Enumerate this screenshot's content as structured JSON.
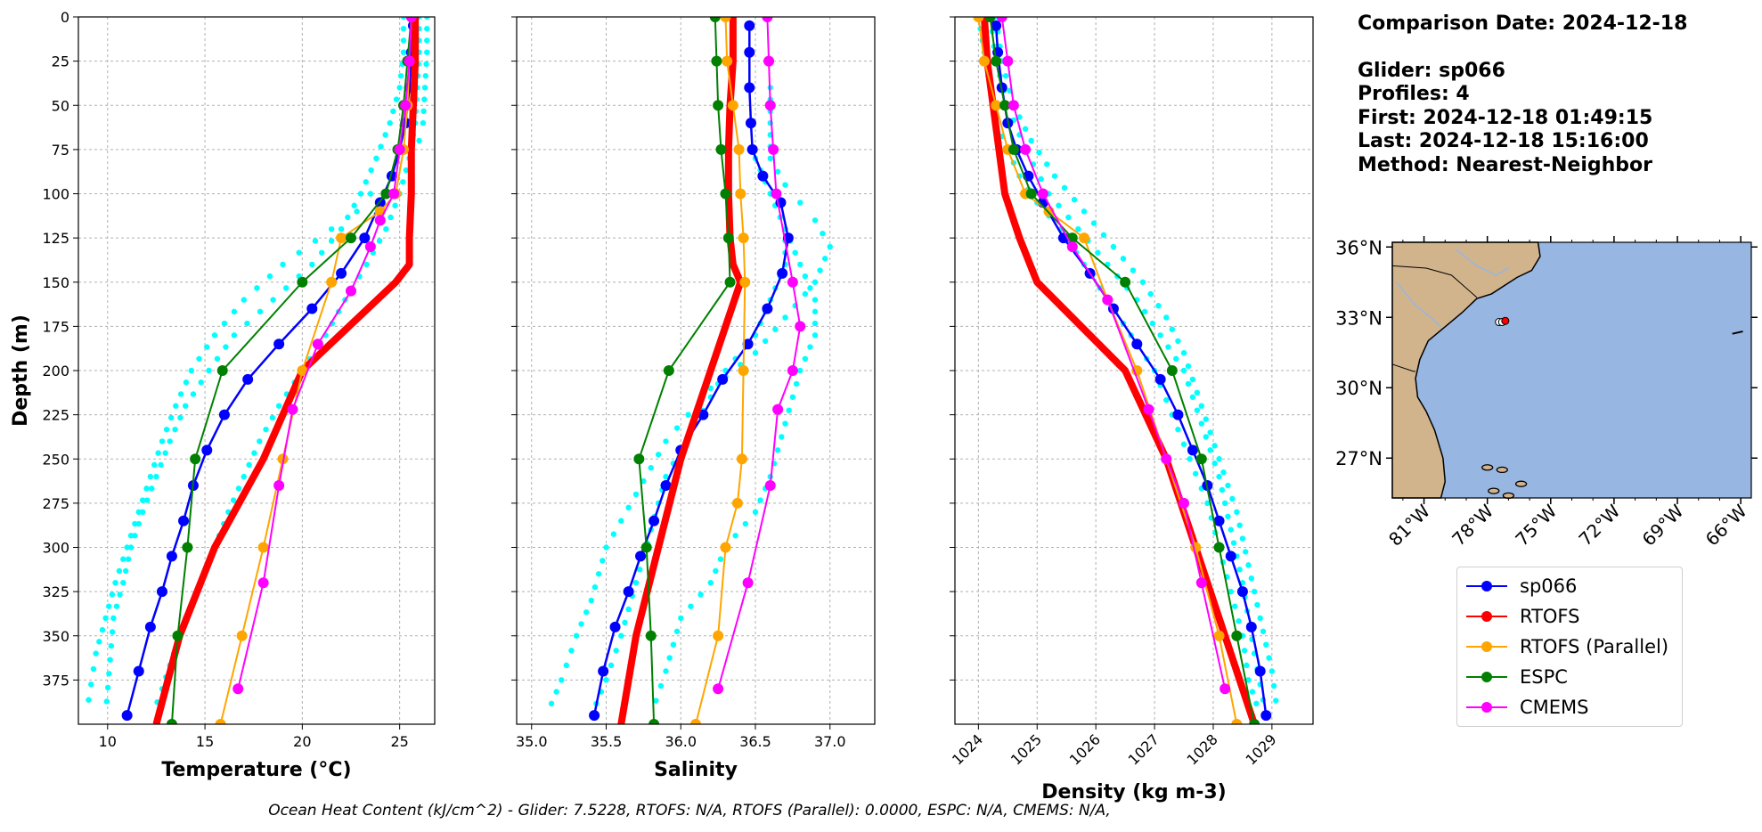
{
  "info": {
    "comparison_date": "Comparison Date: 2024-12-18",
    "glider": "Glider: sp066",
    "profiles": "Profiles: 4",
    "first": "First: 2024-12-18 01:49:15",
    "last": "Last: 2024-12-18 15:16:00",
    "method": "Method: Nearest-Neighbor"
  },
  "footer": "Ocean Heat Content (kJ/cm^2) - Glider: 7.5228,  RTOFS: N/A,  RTOFS (Parallel): 0.0000,  ESPC: N/A,  CMEMS: N/A,",
  "colors": {
    "sp066": "#0000ff",
    "RTOFS": "#ff0000",
    "RTOFS (Parallel)": "#ffa500",
    "ESPC": "#008000",
    "CMEMS": "#ff00ff",
    "glider_envelope": "#00ffff",
    "land": "#d2b48c",
    "ocean": "#97b6e1"
  },
  "legend": [
    "sp066",
    "RTOFS",
    "RTOFS (Parallel)",
    "ESPC",
    "CMEMS"
  ],
  "chart_data": [
    {
      "type": "line",
      "xlabel": "Temperature (°C)",
      "ylabel": "Depth (m)",
      "xlim": [
        8.5,
        26.8
      ],
      "ylim": [
        400,
        0
      ],
      "xticks": [
        10,
        15,
        20,
        25
      ],
      "yticks": [
        0,
        25,
        50,
        75,
        100,
        125,
        150,
        175,
        200,
        225,
        250,
        275,
        300,
        325,
        350,
        375
      ],
      "grid": true,
      "envelope_profiles": [
        {
          "x": [
            26.4,
            26.4,
            26.3,
            26.2,
            26.0,
            25.5,
            24.5,
            23.5,
            22.8,
            21.5,
            19.0,
            17.0,
            15.5,
            14.3,
            13.5,
            12.8,
            12.2,
            11.6,
            11.0,
            10.4,
            9.9,
            9.4,
            8.9
          ],
          "y": [
            0,
            20,
            40,
            60,
            70,
            80,
            90,
            100,
            110,
            120,
            140,
            160,
            180,
            200,
            220,
            240,
            260,
            280,
            300,
            320,
            340,
            360,
            395
          ]
        },
        {
          "x": [
            25.2,
            25.2,
            25.0,
            24.5,
            23.8,
            23.0,
            22.0,
            20.5,
            18.5,
            16.5,
            15.2,
            14.0,
            13.2,
            12.5,
            11.8,
            11.2,
            10.8,
            10.3,
            9.9
          ],
          "y": [
            0,
            20,
            40,
            60,
            80,
            100,
            120,
            140,
            160,
            180,
            200,
            220,
            240,
            260,
            280,
            300,
            320,
            340,
            395
          ]
        },
        {
          "x": [
            26.0,
            26.0,
            25.9,
            25.8,
            25.5,
            25.0,
            24.3,
            23.3,
            22.2,
            21.2,
            20.0,
            18.8,
            17.8,
            17.0,
            16.2,
            15.5,
            14.8,
            14.0,
            13.4,
            12.8,
            12.3
          ],
          "y": [
            0,
            20,
            40,
            60,
            80,
            100,
            120,
            140,
            160,
            180,
            200,
            220,
            240,
            260,
            280,
            300,
            320,
            340,
            360,
            380,
            395
          ]
        }
      ],
      "series": [
        {
          "name": "sp066",
          "x": [
            25.7,
            25.6,
            25.5,
            25.3,
            25.0,
            24.6,
            24.0,
            23.2,
            22.0,
            20.5,
            18.8,
            17.2,
            16.0,
            15.1,
            14.4,
            13.9,
            13.3,
            12.8,
            12.2,
            11.6,
            11.0
          ],
          "y": [
            5,
            20,
            40,
            60,
            75,
            90,
            105,
            125,
            145,
            165,
            185,
            205,
            225,
            245,
            265,
            285,
            305,
            325,
            345,
            370,
            395
          ]
        },
        {
          "name": "RTOFS",
          "x": [
            25.8,
            25.8,
            25.7,
            25.6,
            25.6,
            25.5,
            25.5,
            24.8,
            20.0,
            18.0,
            15.5,
            13.7,
            12.5
          ],
          "y": [
            0,
            25,
            50,
            75,
            100,
            125,
            140,
            150,
            200,
            250,
            300,
            350,
            400
          ]
        },
        {
          "name": "RTOFS (Parallel)",
          "x": [
            25.6,
            25.5,
            25.4,
            25.2,
            24.8,
            24.0,
            22.0,
            21.5,
            20.0,
            19.0,
            18.0,
            16.9,
            15.8
          ],
          "y": [
            0,
            25,
            50,
            75,
            100,
            110,
            125,
            150,
            200,
            250,
            300,
            350,
            400
          ]
        },
        {
          "name": "ESPC",
          "x": [
            25.6,
            25.4,
            25.2,
            24.9,
            24.3,
            22.5,
            20.0,
            15.9,
            14.5,
            14.1,
            13.6,
            13.3
          ],
          "y": [
            0,
            25,
            50,
            75,
            100,
            125,
            150,
            200,
            250,
            300,
            350,
            400
          ]
        },
        {
          "name": "CMEMS",
          "x": [
            25.6,
            25.5,
            25.3,
            25.0,
            24.7,
            24.0,
            23.5,
            22.5,
            20.8,
            19.5,
            18.8,
            18.0,
            16.7
          ],
          "y": [
            0,
            25,
            50,
            75,
            100,
            115,
            130,
            155,
            185,
            222,
            265,
            320,
            380
          ]
        }
      ]
    },
    {
      "type": "line",
      "xlabel": "Salinity",
      "ylim": [
        400,
        0
      ],
      "xlim": [
        34.9,
        37.3
      ],
      "xticks": [
        35.0,
        35.5,
        36.0,
        36.5,
        37.0
      ],
      "grid": true,
      "envelope_profiles": [
        {
          "x": [
            36.6,
            36.6,
            36.6,
            36.7,
            36.8,
            36.9,
            37.0,
            36.9,
            36.7,
            36.5,
            36.2,
            35.9,
            35.7,
            35.5,
            35.4,
            35.3,
            35.2,
            35.1
          ],
          "y": [
            40,
            60,
            80,
            95,
            105,
            115,
            130,
            150,
            170,
            190,
            210,
            240,
            270,
            300,
            330,
            350,
            375,
            395
          ]
        },
        {
          "x": [
            36.5,
            36.6,
            36.7,
            36.7,
            36.6,
            36.5,
            36.3,
            36.1,
            35.9,
            35.8,
            35.7,
            35.6,
            35.5,
            35.4
          ],
          "y": [
            80,
            100,
            120,
            140,
            160,
            180,
            200,
            230,
            260,
            290,
            320,
            350,
            375,
            395
          ]
        },
        {
          "x": [
            36.6,
            36.7,
            36.8,
            36.9,
            36.9,
            36.8,
            36.7,
            36.6,
            36.5,
            36.3,
            36.2,
            36.0,
            35.9,
            35.8
          ],
          "y": [
            100,
            120,
            140,
            160,
            180,
            200,
            230,
            260,
            280,
            300,
            320,
            340,
            370,
            395
          ]
        }
      ],
      "series": [
        {
          "name": "sp066",
          "x": [
            36.46,
            36.46,
            36.46,
            36.47,
            36.48,
            36.55,
            36.67,
            36.72,
            36.68,
            36.58,
            36.45,
            36.28,
            36.15,
            36.0,
            35.9,
            35.82,
            35.73,
            35.65,
            35.56,
            35.48,
            35.42
          ],
          "y": [
            5,
            20,
            40,
            60,
            75,
            90,
            105,
            125,
            145,
            165,
            185,
            205,
            225,
            245,
            265,
            285,
            305,
            325,
            345,
            370,
            395
          ]
        },
        {
          "name": "RTOFS",
          "x": [
            36.35,
            36.35,
            36.33,
            36.32,
            36.32,
            36.33,
            36.35,
            36.4,
            36.2,
            36.0,
            35.85,
            35.7,
            35.6
          ],
          "y": [
            0,
            25,
            50,
            75,
            100,
            125,
            140,
            150,
            200,
            250,
            300,
            350,
            400
          ]
        },
        {
          "name": "RTOFS (Parallel)",
          "x": [
            36.3,
            36.31,
            36.35,
            36.39,
            36.4,
            36.42,
            36.43,
            36.42,
            36.41,
            36.38,
            36.3,
            36.25,
            36.1
          ],
          "y": [
            0,
            25,
            50,
            75,
            100,
            125,
            150,
            200,
            250,
            275,
            300,
            350,
            400
          ]
        },
        {
          "name": "ESPC",
          "x": [
            36.23,
            36.24,
            36.25,
            36.27,
            36.3,
            36.32,
            36.33,
            35.92,
            35.72,
            35.77,
            35.8,
            35.82
          ],
          "y": [
            0,
            25,
            50,
            75,
            100,
            125,
            150,
            200,
            250,
            300,
            350,
            400
          ]
        },
        {
          "name": "CMEMS",
          "x": [
            36.58,
            36.59,
            36.6,
            36.62,
            36.64,
            36.75,
            36.8,
            36.75,
            36.65,
            36.6,
            36.45,
            36.25
          ],
          "y": [
            0,
            25,
            50,
            75,
            100,
            150,
            175,
            200,
            222,
            265,
            320,
            380
          ]
        }
      ]
    },
    {
      "type": "line",
      "xlabel": "Density (kg m-3)",
      "ylim": [
        400,
        0
      ],
      "xlim": [
        1023.6,
        1029.7
      ],
      "xticks": [
        1024,
        1025,
        1026,
        1027,
        1028,
        1029
      ],
      "grid": true,
      "envelope_profiles": [
        {
          "x": [
            1024.0,
            1024.1,
            1024.2,
            1024.3,
            1024.5,
            1024.7,
            1025.0,
            1025.4,
            1025.8,
            1026.2,
            1026.6,
            1027.0,
            1027.3,
            1027.6,
            1027.9,
            1028.1,
            1028.3,
            1028.5,
            1028.6,
            1028.8
          ],
          "y": [
            0,
            20,
            40,
            60,
            75,
            90,
            105,
            120,
            140,
            160,
            180,
            200,
            225,
            250,
            275,
            300,
            325,
            350,
            375,
            395
          ]
        },
        {
          "x": [
            1024.3,
            1024.4,
            1024.6,
            1024.9,
            1025.3,
            1025.8,
            1026.3,
            1026.8,
            1027.2,
            1027.5,
            1027.8,
            1028.1,
            1028.4,
            1028.6,
            1028.8,
            1029.0,
            1029.1
          ],
          "y": [
            0,
            25,
            50,
            70,
            90,
            110,
            130,
            150,
            170,
            190,
            220,
            250,
            280,
            310,
            340,
            370,
            395
          ]
        },
        {
          "x": [
            1024.2,
            1024.3,
            1024.5,
            1024.8,
            1025.2,
            1025.7,
            1026.2,
            1026.7,
            1027.1,
            1027.5,
            1027.8,
            1028.1,
            1028.3,
            1028.5,
            1028.7,
            1028.9
          ],
          "y": [
            0,
            25,
            50,
            75,
            100,
            120,
            140,
            160,
            180,
            200,
            230,
            260,
            290,
            320,
            360,
            395
          ]
        }
      ],
      "series": [
        {
          "name": "sp066",
          "x": [
            1024.3,
            1024.33,
            1024.4,
            1024.5,
            1024.65,
            1024.85,
            1025.1,
            1025.45,
            1025.9,
            1026.3,
            1026.7,
            1027.1,
            1027.4,
            1027.65,
            1027.9,
            1028.1,
            1028.3,
            1028.5,
            1028.65,
            1028.8,
            1028.9
          ],
          "y": [
            5,
            20,
            40,
            60,
            75,
            90,
            105,
            125,
            145,
            165,
            185,
            205,
            225,
            245,
            265,
            285,
            305,
            325,
            345,
            370,
            395
          ]
        },
        {
          "name": "RTOFS",
          "x": [
            1024.1,
            1024.15,
            1024.25,
            1024.35,
            1024.45,
            1024.7,
            1025.0,
            1026.5,
            1027.2,
            1027.7,
            1028.2,
            1028.7
          ],
          "y": [
            0,
            25,
            50,
            75,
            100,
            125,
            150,
            200,
            250,
            300,
            350,
            400
          ]
        },
        {
          "name": "RTOFS (Parallel)",
          "x": [
            1024.0,
            1024.1,
            1024.3,
            1024.5,
            1024.8,
            1025.2,
            1025.8,
            1026.2,
            1026.7,
            1027.2,
            1027.7,
            1028.1,
            1028.4
          ],
          "y": [
            0,
            25,
            50,
            75,
            100,
            110,
            125,
            160,
            200,
            250,
            300,
            350,
            400
          ]
        },
        {
          "name": "ESPC",
          "x": [
            1024.2,
            1024.3,
            1024.45,
            1024.6,
            1024.9,
            1025.6,
            1026.5,
            1027.3,
            1027.8,
            1028.1,
            1028.4,
            1028.7
          ],
          "y": [
            0,
            25,
            50,
            75,
            100,
            125,
            150,
            200,
            250,
            300,
            350,
            400
          ]
        },
        {
          "name": "CMEMS",
          "x": [
            1024.4,
            1024.5,
            1024.6,
            1024.8,
            1025.1,
            1025.6,
            1026.2,
            1026.9,
            1027.2,
            1027.5,
            1027.8,
            1028.2
          ],
          "y": [
            0,
            25,
            50,
            75,
            100,
            130,
            160,
            222,
            250,
            275,
            320,
            380
          ]
        }
      ]
    }
  ],
  "map": {
    "lat_ticks": [
      "36°N",
      "33°N",
      "30°N",
      "27°N"
    ],
    "lon_ticks": [
      "81°W",
      "78°W",
      "75°W",
      "72°W",
      "69°W",
      "66°W"
    ],
    "lat_values": [
      36,
      33,
      30,
      27
    ],
    "lon_values": [
      -81,
      -78,
      -75,
      -72,
      -69,
      -66
    ],
    "extent": {
      "lon": [
        -82.5,
        -65.5
      ],
      "lat": [
        25.3,
        36.2
      ]
    },
    "glider_positions": [
      {
        "lon": -77.45,
        "lat": 32.8
      },
      {
        "lon": -77.3,
        "lat": 32.8
      },
      {
        "lon": -77.15,
        "lat": 32.85
      }
    ]
  }
}
